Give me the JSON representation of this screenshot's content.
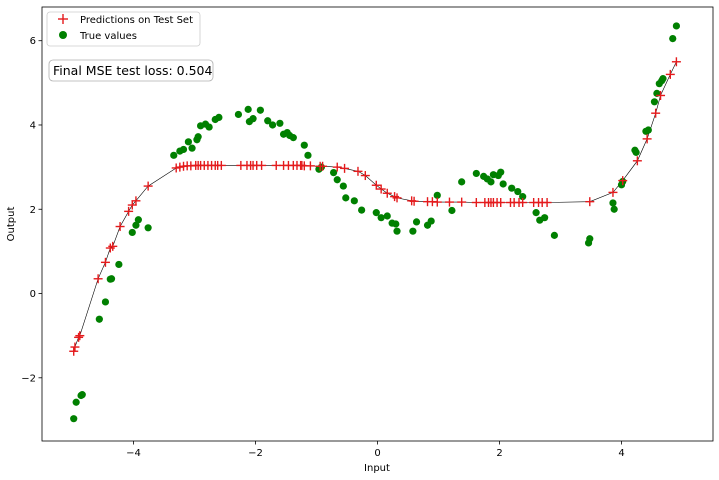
{
  "chart_data": {
    "type": "scatter",
    "xlabel": "Input",
    "ylabel": "Output",
    "xlim": [
      -5.5,
      5.5
    ],
    "ylim": [
      -3.5,
      6.8
    ],
    "xticks": [
      -4,
      -2,
      0,
      2,
      4
    ],
    "yticks": [
      -2,
      0,
      2,
      4,
      6
    ],
    "xtick_labels": [
      "−4",
      "−2",
      "0",
      "2",
      "4"
    ],
    "ytick_labels": [
      "−2",
      "0",
      "2",
      "4",
      "6"
    ],
    "grid": false,
    "legend_placement": "top-left",
    "annotation": "Final MSE test loss: 0.504",
    "series": [
      {
        "name": "Predictions on Test Set",
        "marker": "plus",
        "color": "#e41a1c",
        "x": [
          -4.98,
          -4.96,
          -4.9,
          -4.88,
          -4.58,
          -4.46,
          -4.38,
          -4.34,
          -4.22,
          -4.08,
          -4.02,
          -3.96,
          -3.76,
          -3.3,
          -3.24,
          -3.18,
          -3.12,
          -3.06,
          -2.98,
          -2.94,
          -2.9,
          -2.84,
          -2.78,
          -2.72,
          -2.66,
          -2.62,
          -2.56,
          -2.24,
          -2.14,
          -2.08,
          -2.04,
          -1.98,
          -1.9,
          -1.66,
          -1.54,
          -1.46,
          -1.38,
          -1.32,
          -1.26,
          -1.24,
          -1.2,
          -1.1,
          -0.94,
          -0.9,
          -0.66,
          -0.54,
          -0.32,
          -0.2,
          -0.02,
          0.06,
          0.16,
          0.28,
          0.32,
          0.56,
          0.6,
          0.82,
          0.9,
          0.98,
          1.18,
          1.38,
          1.62,
          1.76,
          1.82,
          1.86,
          1.9,
          1.96,
          2.02,
          2.18,
          2.24,
          2.32,
          2.38,
          2.56,
          2.64,
          2.7,
          2.78,
          3.48,
          3.86,
          4.02,
          4.26,
          4.42,
          4.56,
          4.64,
          4.8,
          4.9
        ],
        "y": [
          -1.37,
          -1.27,
          -1.04,
          -1.0,
          0.35,
          0.74,
          1.08,
          1.12,
          1.59,
          1.95,
          2.1,
          2.2,
          2.55,
          2.98,
          3.0,
          3.02,
          3.03,
          3.03,
          3.04,
          3.04,
          3.04,
          3.04,
          3.04,
          3.04,
          3.04,
          3.04,
          3.04,
          3.04,
          3.04,
          3.04,
          3.04,
          3.04,
          3.04,
          3.04,
          3.04,
          3.04,
          3.04,
          3.04,
          3.04,
          3.04,
          3.03,
          3.03,
          3.02,
          3.02,
          3.0,
          2.97,
          2.9,
          2.8,
          2.57,
          2.48,
          2.38,
          2.3,
          2.27,
          2.2,
          2.19,
          2.18,
          2.18,
          2.17,
          2.17,
          2.17,
          2.16,
          2.16,
          2.16,
          2.16,
          2.16,
          2.16,
          2.16,
          2.16,
          2.16,
          2.16,
          2.16,
          2.16,
          2.16,
          2.16,
          2.16,
          2.18,
          2.4,
          2.68,
          3.15,
          3.67,
          4.28,
          4.7,
          5.2,
          5.5
        ]
      },
      {
        "name": "True values",
        "marker": "circle",
        "color": "#008000",
        "x": [
          -4.98,
          -4.94,
          -4.86,
          -4.84,
          -4.56,
          -4.46,
          -4.38,
          -4.36,
          -4.24,
          -4.02,
          -3.96,
          -3.92,
          -3.76,
          -3.34,
          -3.24,
          -3.18,
          -3.1,
          -3.04,
          -2.96,
          -2.94,
          -2.9,
          -2.82,
          -2.76,
          -2.66,
          -2.6,
          -2.28,
          -2.12,
          -2.1,
          -2.04,
          -1.92,
          -1.8,
          -1.72,
          -1.6,
          -1.54,
          -1.48,
          -1.44,
          -1.38,
          -1.2,
          -1.14,
          -0.96,
          -0.92,
          -0.72,
          -0.66,
          -0.56,
          -0.52,
          -0.38,
          -0.26,
          -0.02,
          0.06,
          0.16,
          0.24,
          0.3,
          0.32,
          0.58,
          0.64,
          0.82,
          0.88,
          0.98,
          1.22,
          1.38,
          1.62,
          1.74,
          1.8,
          1.86,
          1.9,
          1.98,
          2.02,
          2.06,
          2.2,
          2.3,
          2.38,
          2.6,
          2.66,
          2.74,
          2.9,
          3.46,
          3.48,
          3.86,
          3.88,
          4.0,
          4.02,
          4.22,
          4.24,
          4.4,
          4.44,
          4.54,
          4.58,
          4.62,
          4.66,
          4.68,
          4.84,
          4.9
        ],
        "y": [
          -2.97,
          -2.58,
          -2.42,
          -2.4,
          -0.61,
          -0.2,
          0.34,
          0.35,
          0.69,
          1.45,
          1.62,
          1.75,
          1.56,
          3.28,
          3.38,
          3.42,
          3.6,
          3.45,
          3.65,
          3.72,
          3.98,
          4.02,
          3.95,
          4.13,
          4.18,
          4.25,
          4.37,
          4.08,
          4.15,
          4.35,
          4.1,
          4.0,
          4.04,
          3.78,
          3.82,
          3.75,
          3.7,
          3.52,
          3.28,
          2.95,
          3.0,
          2.87,
          2.7,
          2.55,
          2.27,
          2.2,
          1.98,
          1.92,
          1.8,
          1.84,
          1.67,
          1.65,
          1.48,
          1.48,
          1.7,
          1.62,
          1.72,
          2.33,
          1.97,
          2.65,
          2.85,
          2.78,
          2.72,
          2.65,
          2.82,
          2.8,
          2.88,
          2.6,
          2.5,
          2.42,
          2.3,
          1.92,
          1.74,
          1.8,
          1.38,
          1.2,
          1.3,
          2.15,
          2.0,
          2.58,
          2.66,
          3.4,
          3.35,
          3.85,
          3.88,
          4.55,
          4.75,
          4.98,
          5.05,
          5.1,
          6.05,
          6.35
        ]
      }
    ]
  }
}
